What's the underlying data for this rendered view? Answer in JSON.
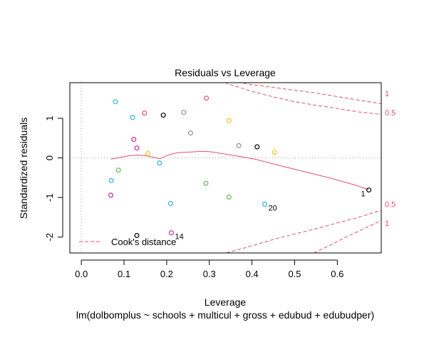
{
  "chart_data": {
    "type": "scatter",
    "title": "Residuals vs Leverage",
    "xlabel": "Leverage",
    "ylabel": "Standardized residuals",
    "subtitle": "lm(dolbomplus ~ schools + multicul + gross + edubud + edubudper)",
    "xlim": [
      -0.027,
      0.703
    ],
    "ylim": [
      -2.4,
      1.9
    ],
    "xticks": [
      "0.0",
      "0.1",
      "0.2",
      "0.3",
      "0.4",
      "0.5",
      "0.6"
    ],
    "yticks": [
      "-2",
      "-1",
      "0",
      "1"
    ],
    "reference_lines": {
      "x": 0,
      "y": 0,
      "style": "dotted",
      "color": "#a0a0a0"
    },
    "points": [
      {
        "x": 0.08,
        "y": 1.42,
        "color": "#28b4d8",
        "label": ""
      },
      {
        "x": 0.12,
        "y": 1.02,
        "color": "#28b4d8",
        "label": ""
      },
      {
        "x": 0.148,
        "y": 1.13,
        "color": "#e0506e",
        "label": ""
      },
      {
        "x": 0.192,
        "y": 1.08,
        "color": "#000000",
        "label": ""
      },
      {
        "x": 0.24,
        "y": 1.15,
        "color": "#909090",
        "label": ""
      },
      {
        "x": 0.293,
        "y": 1.51,
        "color": "#e0506e",
        "label": ""
      },
      {
        "x": 0.346,
        "y": 0.94,
        "color": "#f0c020",
        "label": ""
      },
      {
        "x": 0.256,
        "y": 0.63,
        "color": "#909090",
        "label": ""
      },
      {
        "x": 0.123,
        "y": 0.47,
        "color": "#d020a0",
        "label": ""
      },
      {
        "x": 0.13,
        "y": 0.25,
        "color": "#d020a0",
        "label": ""
      },
      {
        "x": 0.156,
        "y": 0.11,
        "color": "#f0c020",
        "label": ""
      },
      {
        "x": 0.369,
        "y": 0.31,
        "color": "#909090",
        "label": ""
      },
      {
        "x": 0.412,
        "y": 0.28,
        "color": "#000000",
        "label": ""
      },
      {
        "x": 0.453,
        "y": 0.14,
        "color": "#f0c020",
        "label": ""
      },
      {
        "x": 0.183,
        "y": -0.13,
        "color": "#28b4d8",
        "label": ""
      },
      {
        "x": 0.087,
        "y": -0.31,
        "color": "#60b850",
        "label": ""
      },
      {
        "x": 0.07,
        "y": -0.57,
        "color": "#28b4d8",
        "label": ""
      },
      {
        "x": 0.292,
        "y": -0.64,
        "color": "#60b850",
        "label": ""
      },
      {
        "x": 0.069,
        "y": -0.94,
        "color": "#d020a0",
        "label": ""
      },
      {
        "x": 0.346,
        "y": -0.99,
        "color": "#60b850",
        "label": ""
      },
      {
        "x": 0.209,
        "y": -1.15,
        "color": "#28b4d8",
        "label": ""
      },
      {
        "x": 0.43,
        "y": -1.17,
        "color": "#28b4d8",
        "label": "20"
      },
      {
        "x": 0.674,
        "y": -0.81,
        "color": "#000000",
        "label": "1"
      },
      {
        "x": 0.13,
        "y": -1.96,
        "color": "#000000",
        "label": ""
      },
      {
        "x": 0.211,
        "y": -1.89,
        "color": "#d020a0",
        "label": "14"
      }
    ],
    "smoother": {
      "color": "#e0506e",
      "x": [
        0.069,
        0.09,
        0.11,
        0.13,
        0.15,
        0.17,
        0.185,
        0.2,
        0.22,
        0.24,
        0.26,
        0.28,
        0.3,
        0.33,
        0.37,
        0.41,
        0.46,
        0.52,
        0.58,
        0.64,
        0.674
      ],
      "y": [
        -0.03,
        0.01,
        0.05,
        0.07,
        0.06,
        0.01,
        -0.02,
        0.06,
        0.12,
        0.14,
        0.15,
        0.17,
        0.16,
        0.11,
        0.04,
        -0.04,
        -0.18,
        -0.34,
        -0.5,
        -0.68,
        -0.8
      ]
    },
    "cooks_distance": {
      "color": "#e0506e",
      "contours": [
        {
          "level": "1",
          "x": [
            0.34,
            0.4,
            0.45,
            0.5,
            0.55,
            0.6,
            0.65,
            0.703
          ],
          "y": [
            1.95,
            1.85,
            1.78,
            1.71,
            1.64,
            1.55,
            1.46,
            1.37
          ]
        },
        {
          "level": "0.5",
          "x": [
            0.25,
            0.3,
            0.35,
            0.4,
            0.45,
            0.5,
            0.55,
            0.6,
            0.65,
            0.703
          ],
          "y": [
            2.3,
            2.05,
            1.85,
            1.68,
            1.54,
            1.42,
            1.33,
            1.25,
            1.16,
            1.1
          ]
        },
        {
          "level": "0.5",
          "x": [
            0.34,
            0.4,
            0.45,
            0.5,
            0.55,
            0.6,
            0.65,
            0.703
          ],
          "y": [
            -2.4,
            -2.22,
            -2.06,
            -1.92,
            -1.79,
            -1.64,
            -1.5,
            -1.32
          ]
        },
        {
          "level": "1",
          "x": [
            0.545,
            0.58,
            0.62,
            0.66,
            0.703
          ],
          "y": [
            -2.4,
            -2.22,
            -2.0,
            -1.8,
            -1.58
          ]
        }
      ],
      "right_labels": [
        {
          "text": "1",
          "y": 1.63
        },
        {
          "text": "0.5",
          "y": 1.14
        },
        {
          "text": "0.5",
          "y": -1.17
        },
        {
          "text": "1",
          "y": -1.64
        }
      ]
    },
    "legend": {
      "label": "Cook's distance",
      "position": "bottom-left",
      "line_style": "dashed",
      "color": "#e0506e"
    }
  }
}
